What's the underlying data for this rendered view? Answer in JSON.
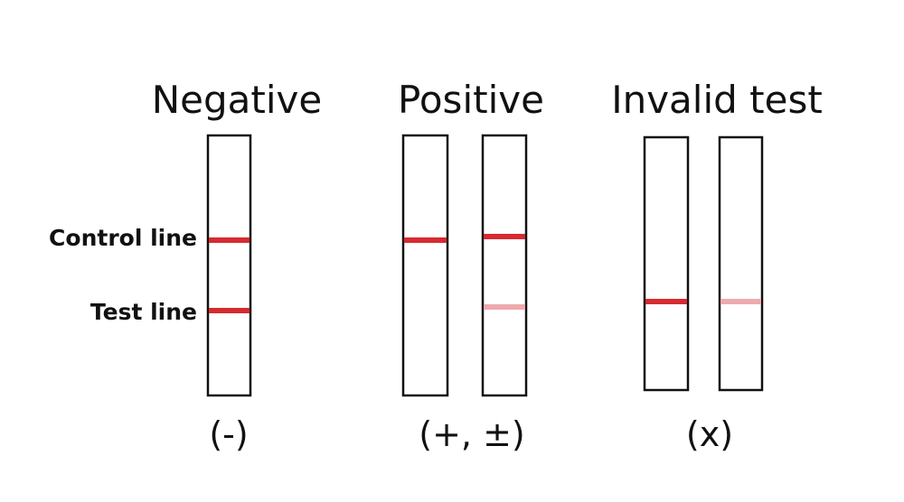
{
  "panels": [
    {
      "title": "Negative",
      "symbol": "(-)"
    },
    {
      "title": "Positive",
      "symbol": "(+, ±)"
    },
    {
      "title": "Invalid test",
      "symbol": "(x)"
    }
  ],
  "labels": {
    "control": "Control line",
    "test": "Test line"
  }
}
